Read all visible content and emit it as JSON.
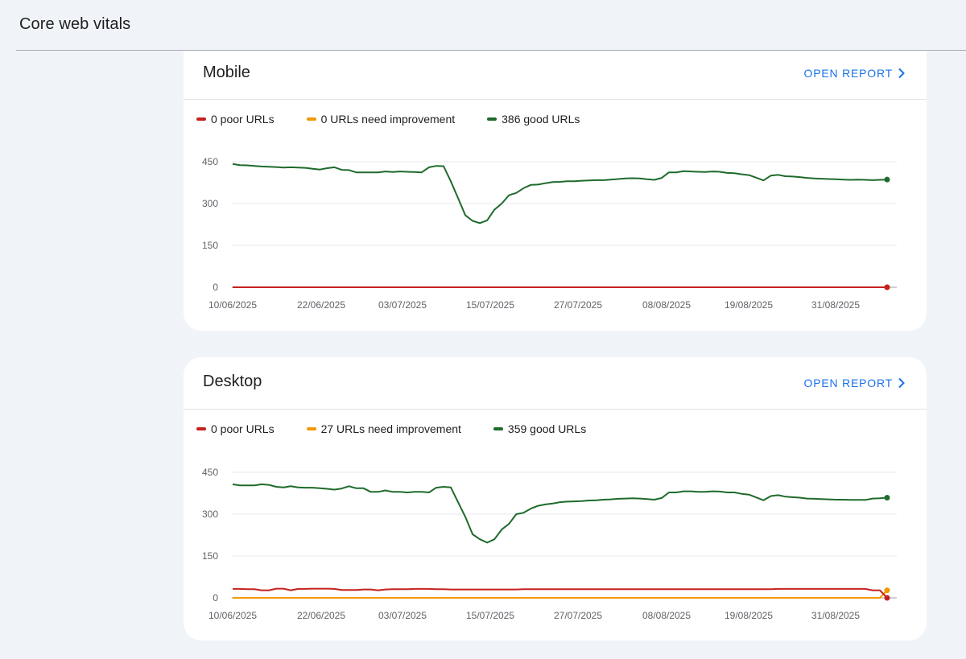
{
  "page": {
    "title": "Core web vitals"
  },
  "colors": {
    "poor": "#c5221f",
    "needs": "#f29900",
    "good": "#1e6b2b",
    "link": "#1a73e8"
  },
  "cards": [
    {
      "key": "mobile",
      "title": "Mobile",
      "open_report_label": "OPEN REPORT",
      "legend": [
        {
          "label": "0 poor URLs",
          "color": "#c5221f"
        },
        {
          "label": "0 URLs need improvement",
          "color": "#f29900"
        },
        {
          "label": "386 good URLs",
          "color": "#1e6b2b"
        }
      ],
      "chart_data": {
        "type": "line",
        "y_ticks": [
          "450",
          "300",
          "150",
          "0"
        ],
        "ylim": [
          0,
          450
        ],
        "x_tick_labels": [
          "10/06/2025",
          "22/06/2025",
          "03/07/2025",
          "15/07/2025",
          "27/07/2025",
          "08/08/2025",
          "19/08/2025",
          "31/08/2025"
        ],
        "grid": true,
        "series": [
          {
            "name": "0 poor URLs",
            "color": "#c5221f",
            "values": [
              0,
              0,
              0,
              0,
              0,
              0,
              0,
              0,
              0,
              0,
              0,
              0,
              0,
              0,
              0,
              0,
              0,
              0,
              0,
              0,
              0,
              0,
              0,
              0,
              0,
              0,
              0,
              0,
              0,
              0,
              0,
              0,
              0,
              0,
              0,
              0,
              0,
              0,
              0,
              0,
              0,
              0,
              0,
              0,
              0,
              0,
              0,
              0,
              0,
              0,
              0,
              0,
              0,
              0,
              0,
              0,
              0,
              0,
              0,
              0,
              0,
              0,
              0,
              0,
              0,
              0,
              0,
              0,
              0,
              0,
              0,
              0,
              0,
              0,
              0,
              0,
              0,
              0,
              0,
              0,
              0,
              0,
              0,
              0,
              0,
              0,
              0,
              0,
              0,
              0,
              0
            ]
          },
          {
            "name": "0 URLs need improvement",
            "color": "#f29900",
            "values": [
              0,
              0,
              0,
              0,
              0,
              0,
              0,
              0,
              0,
              0,
              0,
              0,
              0,
              0,
              0,
              0,
              0,
              0,
              0,
              0,
              0,
              0,
              0,
              0,
              0,
              0,
              0,
              0,
              0,
              0,
              0,
              0,
              0,
              0,
              0,
              0,
              0,
              0,
              0,
              0,
              0,
              0,
              0,
              0,
              0,
              0,
              0,
              0,
              0,
              0,
              0,
              0,
              0,
              0,
              0,
              0,
              0,
              0,
              0,
              0,
              0,
              0,
              0,
              0,
              0,
              0,
              0,
              0,
              0,
              0,
              0,
              0,
              0,
              0,
              0,
              0,
              0,
              0,
              0,
              0,
              0,
              0,
              0,
              0,
              0,
              0,
              0,
              0,
              0,
              0,
              0
            ]
          },
          {
            "name": "386 good URLs",
            "color": "#1e6b2b",
            "values": [
              442,
              438,
              437,
              435,
              433,
              432,
              431,
              429,
              430,
              429,
              428,
              425,
              422,
              427,
              430,
              421,
              420,
              412,
              412,
              412,
              412,
              415,
              413,
              415,
              414,
              413,
              412,
              430,
              435,
              434,
              380,
              320,
              258,
              238,
              230,
              240,
              278,
              300,
              330,
              338,
              355,
              367,
              368,
              373,
              377,
              378,
              380,
              380,
              382,
              383,
              384,
              384,
              386,
              388,
              390,
              391,
              390,
              387,
              385,
              392,
              412,
              412,
              416,
              415,
              414,
              413,
              415,
              414,
              410,
              409,
              405,
              402,
              393,
              383,
              400,
              403,
              398,
              397,
              395,
              392,
              390,
              389,
              388,
              387,
              386,
              385,
              386,
              385,
              384,
              385,
              386
            ]
          }
        ]
      }
    },
    {
      "key": "desktop",
      "title": "Desktop",
      "open_report_label": "OPEN REPORT",
      "legend": [
        {
          "label": "0 poor URLs",
          "color": "#c5221f"
        },
        {
          "label": "27 URLs need improvement",
          "color": "#f29900"
        },
        {
          "label": "359 good URLs",
          "color": "#1e6b2b"
        }
      ],
      "chart_data": {
        "type": "line",
        "y_ticks": [
          "450",
          "300",
          "150",
          "0"
        ],
        "ylim": [
          0,
          450
        ],
        "x_tick_labels": [
          "10/06/2025",
          "22/06/2025",
          "03/07/2025",
          "15/07/2025",
          "27/07/2025",
          "08/08/2025",
          "19/08/2025",
          "31/08/2025"
        ],
        "grid": true,
        "series": [
          {
            "name": "0 poor URLs",
            "color": "#c5221f",
            "values": [
              32,
              32,
              31,
              31,
              27,
              27,
              33,
              33,
              27,
              32,
              32,
              33,
              33,
              33,
              32,
              28,
              28,
              28,
              30,
              30,
              27,
              30,
              31,
              31,
              31,
              32,
              32,
              32,
              31,
              31,
              30,
              30,
              30,
              30,
              30,
              30,
              30,
              30,
              30,
              30,
              31,
              31,
              31,
              31,
              31,
              31,
              31,
              31,
              31,
              31,
              31,
              31,
              31,
              31,
              31,
              31,
              31,
              31,
              31,
              31,
              31,
              31,
              31,
              31,
              31,
              31,
              31,
              31,
              31,
              31,
              31,
              31,
              31,
              31,
              31,
              32,
              32,
              32,
              32,
              32,
              32,
              32,
              32,
              32,
              32,
              32,
              32,
              32,
              27,
              27,
              0
            ]
          },
          {
            "name": "27 URLs need improvement",
            "color": "#f29900",
            "values": [
              0,
              0,
              0,
              0,
              0,
              0,
              0,
              0,
              0,
              0,
              0,
              0,
              0,
              0,
              0,
              0,
              0,
              0,
              0,
              0,
              0,
              0,
              0,
              0,
              0,
              0,
              0,
              0,
              0,
              0,
              0,
              0,
              0,
              0,
              0,
              0,
              0,
              0,
              0,
              0,
              0,
              0,
              0,
              0,
              0,
              0,
              0,
              0,
              0,
              0,
              0,
              0,
              0,
              0,
              0,
              0,
              0,
              0,
              0,
              0,
              0,
              0,
              0,
              0,
              0,
              0,
              0,
              0,
              0,
              0,
              0,
              0,
              0,
              0,
              0,
              0,
              0,
              0,
              0,
              0,
              0,
              0,
              0,
              0,
              0,
              0,
              0,
              0,
              0,
              0,
              27
            ]
          },
          {
            "name": "359 good URLs",
            "color": "#1e6b2b",
            "values": [
              407,
              403,
              403,
              403,
              407,
              405,
              398,
              396,
              400,
              396,
              395,
              395,
              393,
              391,
              388,
              392,
              400,
              393,
              393,
              380,
              380,
              385,
              380,
              380,
              378,
              380,
              380,
              378,
              395,
              398,
              396,
              343,
              290,
              228,
              210,
              198,
              210,
              245,
              265,
              300,
              305,
              320,
              330,
              335,
              338,
              343,
              345,
              346,
              347,
              349,
              350,
              352,
              353,
              355,
              356,
              357,
              356,
              354,
              352,
              358,
              378,
              378,
              382,
              382,
              380,
              380,
              382,
              381,
              378,
              378,
              373,
              370,
              360,
              350,
              365,
              368,
              363,
              361,
              359,
              356,
              355,
              354,
              353,
              352,
              352,
              351,
              351,
              351,
              356,
              357,
              359
            ]
          }
        ]
      }
    }
  ]
}
